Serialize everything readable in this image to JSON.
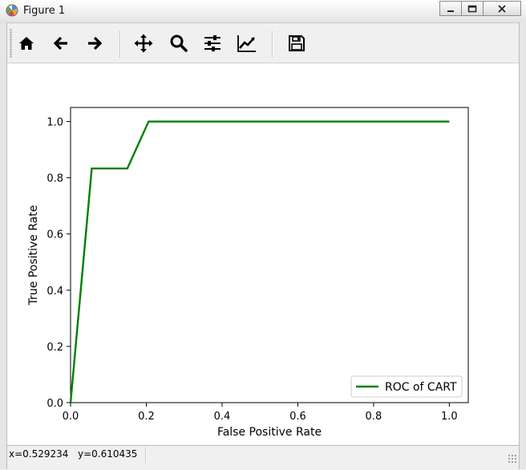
{
  "window": {
    "title": "Figure 1",
    "controls": {
      "minimize_icon": "minimize-icon",
      "maximize_icon": "maximize-icon",
      "close_icon": "close-icon"
    }
  },
  "toolbar": {
    "tools": [
      {
        "id": "home",
        "icon": "home-icon"
      },
      {
        "id": "back",
        "icon": "arrow-left-icon"
      },
      {
        "id": "forward",
        "icon": "arrow-right-icon"
      },
      {
        "id": "pan",
        "icon": "move-icon"
      },
      {
        "id": "zoom",
        "icon": "magnifier-icon"
      },
      {
        "id": "subplots",
        "icon": "sliders-icon"
      },
      {
        "id": "edit",
        "icon": "line-chart-icon"
      },
      {
        "id": "save",
        "icon": "floppy-disk-icon"
      }
    ]
  },
  "status": {
    "x_readout": "x=0.529234",
    "y_readout": "y=0.610435"
  },
  "chart_data": {
    "type": "line",
    "title": "",
    "xlabel": "False Positive Rate",
    "ylabel": "True Positive Rate",
    "xlim": [
      0.0,
      1.05
    ],
    "ylim": [
      0.0,
      1.05
    ],
    "xticks": [
      "0.0",
      "0.2",
      "0.4",
      "0.6",
      "0.8",
      "1.0"
    ],
    "yticks": [
      "0.0",
      "0.2",
      "0.4",
      "0.6",
      "0.8",
      "1.0"
    ],
    "grid": false,
    "legend_position": "lower-right",
    "series": [
      {
        "name": "ROC of CART",
        "color": "#008000",
        "x": [
          0.0,
          0.056,
          0.15,
          0.206,
          1.0
        ],
        "y": [
          0.0,
          0.833,
          0.833,
          1.0,
          1.0
        ]
      }
    ]
  }
}
